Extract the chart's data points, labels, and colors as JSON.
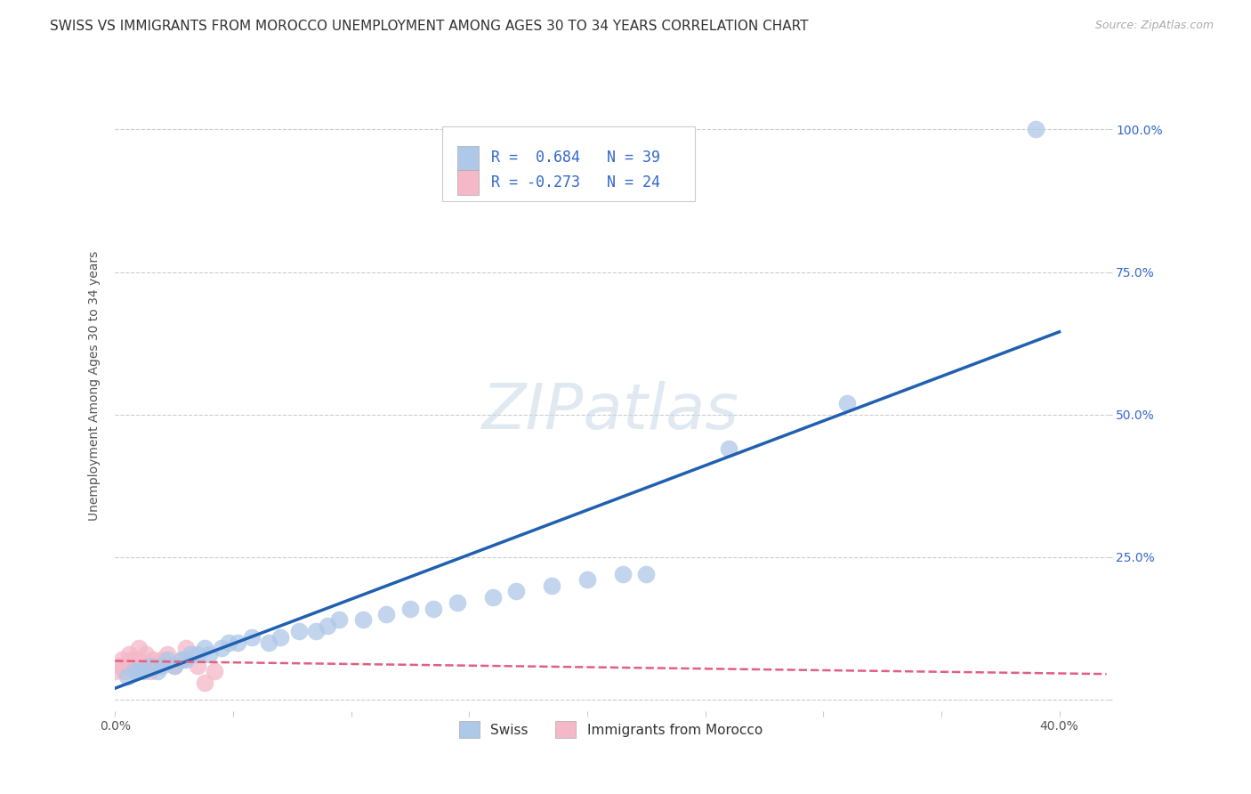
{
  "title": "SWISS VS IMMIGRANTS FROM MOROCCO UNEMPLOYMENT AMONG AGES 30 TO 34 YEARS CORRELATION CHART",
  "source": "Source: ZipAtlas.com",
  "ylabel": "Unemployment Among Ages 30 to 34 years",
  "xlim": [
    0.0,
    0.42
  ],
  "ylim": [
    -0.02,
    1.12
  ],
  "plot_xlim": [
    0.0,
    0.4
  ],
  "plot_ylim": [
    0.0,
    1.05
  ],
  "xticks": [
    0.0,
    0.05,
    0.1,
    0.15,
    0.2,
    0.25,
    0.3,
    0.35,
    0.4
  ],
  "ytick_positions": [
    0.0,
    0.25,
    0.5,
    0.75,
    1.0
  ],
  "ytick_labels_right": [
    "",
    "25.0%",
    "50.0%",
    "75.0%",
    "100.0%"
  ],
  "swiss_color": "#aec8e8",
  "swiss_line_color": "#2060b0",
  "morocco_color": "#f4b8c8",
  "morocco_line_color": "#e06080",
  "swiss_scatter_x": [
    0.005,
    0.008,
    0.01,
    0.012,
    0.015,
    0.018,
    0.02,
    0.022,
    0.025,
    0.028,
    0.03,
    0.032,
    0.035,
    0.038,
    0.04,
    0.045,
    0.048,
    0.052,
    0.058,
    0.065,
    0.07,
    0.078,
    0.085,
    0.09,
    0.095,
    0.105,
    0.115,
    0.125,
    0.135,
    0.145,
    0.16,
    0.17,
    0.185,
    0.2,
    0.215,
    0.225,
    0.26,
    0.31,
    0.39
  ],
  "swiss_scatter_y": [
    0.04,
    0.05,
    0.05,
    0.05,
    0.06,
    0.05,
    0.06,
    0.07,
    0.06,
    0.07,
    0.07,
    0.08,
    0.08,
    0.09,
    0.08,
    0.09,
    0.1,
    0.1,
    0.11,
    0.1,
    0.11,
    0.12,
    0.12,
    0.13,
    0.14,
    0.14,
    0.15,
    0.16,
    0.16,
    0.17,
    0.18,
    0.19,
    0.2,
    0.21,
    0.22,
    0.22,
    0.44,
    0.52,
    1.0
  ],
  "morocco_scatter_x": [
    0.0,
    0.002,
    0.003,
    0.004,
    0.005,
    0.006,
    0.007,
    0.008,
    0.009,
    0.01,
    0.01,
    0.012,
    0.013,
    0.015,
    0.016,
    0.018,
    0.02,
    0.022,
    0.025,
    0.028,
    0.03,
    0.035,
    0.038,
    0.042
  ],
  "morocco_scatter_y": [
    0.05,
    0.06,
    0.07,
    0.05,
    0.06,
    0.08,
    0.07,
    0.06,
    0.05,
    0.07,
    0.09,
    0.06,
    0.08,
    0.05,
    0.07,
    0.06,
    0.07,
    0.08,
    0.06,
    0.07,
    0.09,
    0.06,
    0.03,
    0.05
  ],
  "swiss_trend_x0": 0.0,
  "swiss_trend_y0": 0.02,
  "swiss_trend_x1": 0.4,
  "swiss_trend_y1": 0.645,
  "morocco_trend_x0": 0.0,
  "morocco_trend_y0": 0.068,
  "morocco_trend_x1": 0.42,
  "morocco_trend_y1": 0.045,
  "background_color": "#ffffff",
  "grid_color": "#cccccc",
  "title_fontsize": 11,
  "axis_label_fontsize": 10,
  "tick_fontsize": 10,
  "watermark_text": "ZIPatlas",
  "watermark_color": "#c8d8e8",
  "watermark_fontsize": 52
}
